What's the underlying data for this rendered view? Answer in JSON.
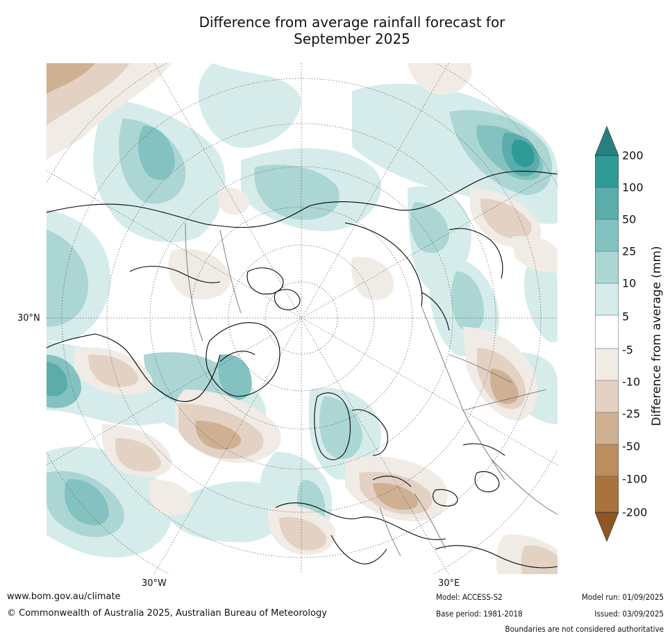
{
  "title_line1": "Difference from average rainfall forecast for",
  "title_line2": "September 2025",
  "map": {
    "projection": "north-polar-stereographic",
    "lat_label": "30°N",
    "lon_labels": [
      "30°W",
      "30°E"
    ],
    "colors": {
      "ocean_background": "#ffffff",
      "coastline": "#000000",
      "borders": "#707070",
      "graticule": "#555555"
    }
  },
  "colorbar": {
    "title": "Difference from average (mm)",
    "ticks": [
      "200",
      "100",
      "50",
      "25",
      "10",
      "5",
      "-5",
      "-10",
      "-25",
      "-50",
      "-100",
      "-200"
    ],
    "colors": [
      "#28807e",
      "#2f9b97",
      "#5aadab",
      "#83c2c0",
      "#abd6d4",
      "#d5ecea",
      "#ffffff",
      "#f1ebe6",
      "#e3d2c3",
      "#cfb092",
      "#bb8d5f",
      "#a8733d",
      "#8d5622"
    ],
    "extend": "both"
  },
  "footer": {
    "url": "www.bom.gov.au/climate",
    "copyright": "© Commonwealth of Australia 2025, Australian Bureau of Meteorology",
    "model": "Model: ACCESS-S2",
    "base_period": "Base period: 1981-2018",
    "model_run": "Model run: 01/09/2025",
    "issued": "Issued: 03/09/2025",
    "disclaimer": "Boundaries are not considered authoritative"
  }
}
